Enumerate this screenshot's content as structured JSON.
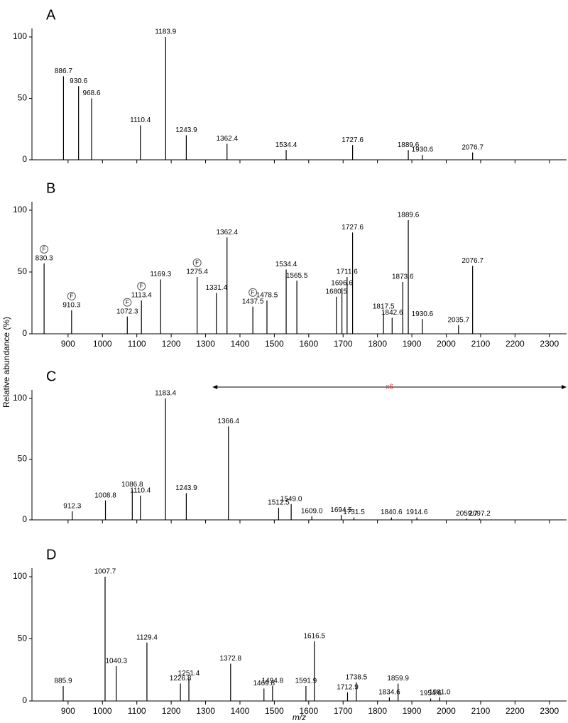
{
  "chart_data": [
    {
      "type": "spectrum",
      "panel": "A",
      "xlim": [
        795,
        2350
      ],
      "ylim": [
        0,
        100
      ],
      "yticks": [
        0,
        50,
        100
      ],
      "xticks": [
        900,
        1000,
        1100,
        1200,
        1300,
        1400,
        1500,
        1600,
        1700,
        1800,
        1900,
        2000,
        2100,
        2200,
        2300
      ],
      "xtick_labels": false,
      "peaks": [
        {
          "x": 886.7,
          "y": 68,
          "label": "886.7"
        },
        {
          "x": 930.6,
          "y": 60,
          "label": "930.6"
        },
        {
          "x": 968.6,
          "y": 50,
          "label": "968.6"
        },
        {
          "x": 1110.4,
          "y": 28,
          "label": "1110.4"
        },
        {
          "x": 1183.9,
          "y": 100,
          "label": "1183.9"
        },
        {
          "x": 1243.9,
          "y": 20,
          "label": "1243.9"
        },
        {
          "x": 1362.4,
          "y": 13,
          "label": "1362.4"
        },
        {
          "x": 1534.4,
          "y": 8,
          "label": "1534.4"
        },
        {
          "x": 1727.6,
          "y": 12,
          "label": "1727.6"
        },
        {
          "x": 1889.6,
          "y": 8,
          "label": "1889.6"
        },
        {
          "x": 1930.6,
          "y": 4,
          "label": "1930.6"
        },
        {
          "x": 2076.7,
          "y": 6,
          "label": "2076.7"
        }
      ]
    },
    {
      "type": "spectrum",
      "panel": "B",
      "xlim": [
        795,
        2350
      ],
      "ylim": [
        0,
        100
      ],
      "yticks": [
        0,
        50,
        100
      ],
      "xticks": [
        900,
        1000,
        1100,
        1200,
        1300,
        1400,
        1500,
        1600,
        1700,
        1800,
        1900,
        2000,
        2100,
        2200,
        2300
      ],
      "xtick_labels": true,
      "ylabel": "Relative abundance (%)",
      "peaks": [
        {
          "x": 830.3,
          "y": 57,
          "label": "830.3",
          "marker": "F"
        },
        {
          "x": 910.3,
          "y": 19,
          "label": "910.3",
          "marker": "F"
        },
        {
          "x": 1072.3,
          "y": 14,
          "label": "1072.3",
          "marker": "F"
        },
        {
          "x": 1113.4,
          "y": 27,
          "label": "1113.4",
          "marker": "F"
        },
        {
          "x": 1169.3,
          "y": 44,
          "label": "1169.3"
        },
        {
          "x": 1275.4,
          "y": 46,
          "label": "1275.4",
          "marker": "F"
        },
        {
          "x": 1331.4,
          "y": 33,
          "label": "1331.4"
        },
        {
          "x": 1362.4,
          "y": 78,
          "label": "1362.4"
        },
        {
          "x": 1437.5,
          "y": 22,
          "label": "1437.5",
          "marker": "F"
        },
        {
          "x": 1478.5,
          "y": 27,
          "label": "1478.5"
        },
        {
          "x": 1534.4,
          "y": 52,
          "label": "1534.4"
        },
        {
          "x": 1565.5,
          "y": 43,
          "label": "1565.5"
        },
        {
          "x": 1680.5,
          "y": 30,
          "label": "1680.5"
        },
        {
          "x": 1696.6,
          "y": 37,
          "label": "1696.6"
        },
        {
          "x": 1711.6,
          "y": 46,
          "label": "1711.6"
        },
        {
          "x": 1727.6,
          "y": 82,
          "label": "1727.6"
        },
        {
          "x": 1817.5,
          "y": 18,
          "label": "1817.5"
        },
        {
          "x": 1842.6,
          "y": 13,
          "label": "1842.6"
        },
        {
          "x": 1873.6,
          "y": 42,
          "label": "1873.6"
        },
        {
          "x": 1889.6,
          "y": 92,
          "label": "1889.6"
        },
        {
          "x": 1930.6,
          "y": 12,
          "label": "1930.6"
        },
        {
          "x": 2035.7,
          "y": 7,
          "label": "2035.7"
        },
        {
          "x": 2076.7,
          "y": 55,
          "label": "2076.7"
        }
      ]
    },
    {
      "type": "spectrum",
      "panel": "C",
      "xlim": [
        795,
        2350
      ],
      "ylim": [
        0,
        100
      ],
      "yticks": [
        0,
        50,
        100
      ],
      "xticks": [
        900,
        1000,
        1100,
        1200,
        1300,
        1400,
        1500,
        1600,
        1700,
        1800,
        1900,
        2000,
        2100,
        2200,
        2300
      ],
      "xtick_labels": false,
      "annotation": {
        "text": "x6",
        "from": 1320,
        "to": 2350
      },
      "peaks": [
        {
          "x": 912.3,
          "y": 7,
          "label": "912.3"
        },
        {
          "x": 1008.8,
          "y": 16,
          "label": "1008.8"
        },
        {
          "x": 1086.8,
          "y": 25,
          "label": "1086.8"
        },
        {
          "x": 1110.4,
          "y": 20,
          "label": "1110.4"
        },
        {
          "x": 1183.4,
          "y": 100,
          "label": "1183.4"
        },
        {
          "x": 1243.9,
          "y": 22,
          "label": "1243.9"
        },
        {
          "x": 1366.4,
          "y": 77,
          "label": "1366.4"
        },
        {
          "x": 1512.5,
          "y": 10,
          "label": "1512.5"
        },
        {
          "x": 1549.0,
          "y": 13,
          "label": "1549.0"
        },
        {
          "x": 1609.0,
          "y": 3,
          "label": "1609.0"
        },
        {
          "x": 1694.5,
          "y": 4,
          "label": "1694.5"
        },
        {
          "x": 1731.5,
          "y": 2,
          "label": "1731.5"
        },
        {
          "x": 1840.6,
          "y": 2,
          "label": "1840.6"
        },
        {
          "x": 1914.6,
          "y": 2,
          "label": "1914.6"
        },
        {
          "x": 2059.7,
          "y": 1,
          "label": "2059.7"
        },
        {
          "x": 2097.2,
          "y": 1,
          "label": "2097.2"
        }
      ]
    },
    {
      "type": "spectrum",
      "panel": "D",
      "xlim": [
        795,
        2350
      ],
      "ylim": [
        0,
        100
      ],
      "yticks": [
        0,
        50,
        100
      ],
      "xticks": [
        900,
        1000,
        1100,
        1200,
        1300,
        1400,
        1500,
        1600,
        1700,
        1800,
        1900,
        2000,
        2100,
        2200,
        2300
      ],
      "xtick_labels": true,
      "xlabel": "m/z",
      "peaks": [
        {
          "x": 885.9,
          "y": 12,
          "label": "885.9"
        },
        {
          "x": 1007.7,
          "y": 100,
          "label": "1007.7"
        },
        {
          "x": 1040.3,
          "y": 28,
          "label": "1040.3"
        },
        {
          "x": 1129.4,
          "y": 47,
          "label": "1129.4"
        },
        {
          "x": 1226.8,
          "y": 14,
          "label": "1226.8"
        },
        {
          "x": 1251.4,
          "y": 18,
          "label": "1251.4"
        },
        {
          "x": 1372.8,
          "y": 30,
          "label": "1372.8"
        },
        {
          "x": 1469.8,
          "y": 10,
          "label": "1469.8"
        },
        {
          "x": 1494.8,
          "y": 12,
          "label": "1494.8"
        },
        {
          "x": 1591.9,
          "y": 12,
          "label": "1591.9"
        },
        {
          "x": 1616.5,
          "y": 48,
          "label": "1616.5"
        },
        {
          "x": 1712.9,
          "y": 7,
          "label": "1712.9"
        },
        {
          "x": 1738.5,
          "y": 15,
          "label": "1738.5"
        },
        {
          "x": 1834.6,
          "y": 3,
          "label": "1834.6"
        },
        {
          "x": 1859.9,
          "y": 14,
          "label": "1859.9"
        },
        {
          "x": 1954.6,
          "y": 2,
          "label": "1954.6"
        },
        {
          "x": 1981.0,
          "y": 3,
          "label": "1981.0"
        }
      ]
    }
  ]
}
